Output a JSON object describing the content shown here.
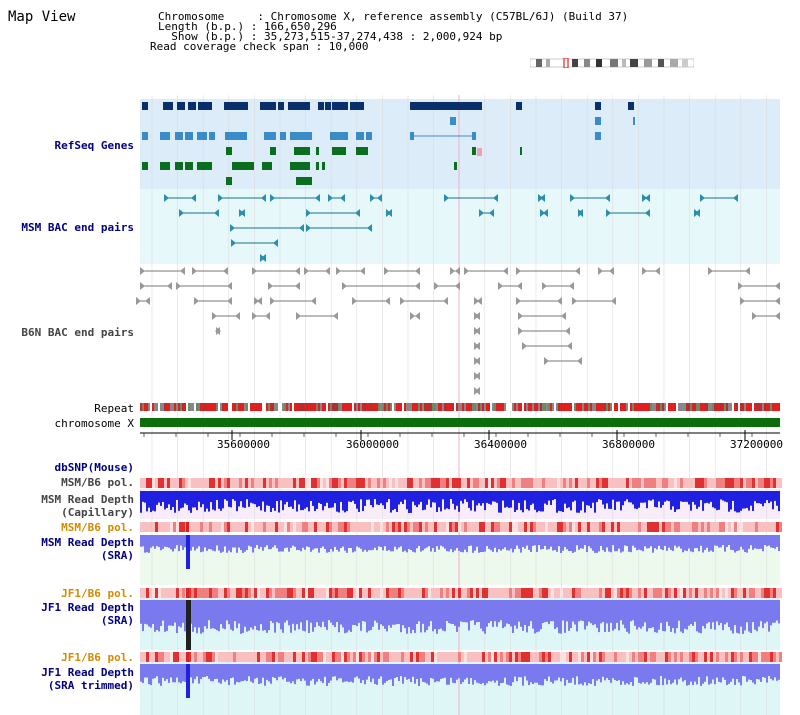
{
  "page": {
    "title": "Map View"
  },
  "header": {
    "line1": "Chromosome     : Chromosome X, reference assembly (C57BL/6J) (Build 37)",
    "line2": "Length (b.p.) : 166,650,296",
    "line3": "  Show (b.p.) : 35,273,515-37,274,438 : 2,000,924 bp",
    "line4": "Read coverage check span : 10,000"
  },
  "tracks": {
    "refseq": "RefSeq Genes",
    "msm_bac": "MSM BAC end pairs",
    "b6n_bac": "B6N BAC end pairs",
    "repeat": "Repeat",
    "chromosome": "chromosome X",
    "dbsnp": "dbSNP(Mouse)",
    "msm_b6_pol_1": "MSM/B6 pol.",
    "msm_depth_cap_1": "MSM Read Depth",
    "msm_depth_cap_2": "(Capillary)",
    "msm_b6_pol_2": "MSM/B6 pol.",
    "msm_depth_sra_1": "MSM Read Depth",
    "msm_depth_sra_2": "(SRA)",
    "jf1_b6_pol_1": "JF1/B6 pol.",
    "jf1_depth_sra_1": "JF1 Read Depth",
    "jf1_depth_sra_2": "(SRA)",
    "jf1_b6_pol_2": "JF1/B6 pol.",
    "jf1_depth_trim_1": "JF1 Read Depth",
    "jf1_depth_trim_2": "(SRA trimmed)"
  },
  "ruler": {
    "ticks": [
      "35600000",
      "36000000",
      "36400000",
      "36800000",
      "37200000"
    ]
  },
  "colors": {
    "refseq_bg": "#dcecf8",
    "bac_bg": "#e6f8fa",
    "label_navy": "#000080",
    "label_orange": "#d88a00",
    "label_gray": "#444444",
    "gene_navy": "#0a2f6b",
    "gene_blue": "#3a8cc8",
    "gene_green": "#0a6e1e",
    "depth_blue": "#2020e0",
    "depth_light": "#7a7aee",
    "chrom_green": "#0b6e0b"
  }
}
